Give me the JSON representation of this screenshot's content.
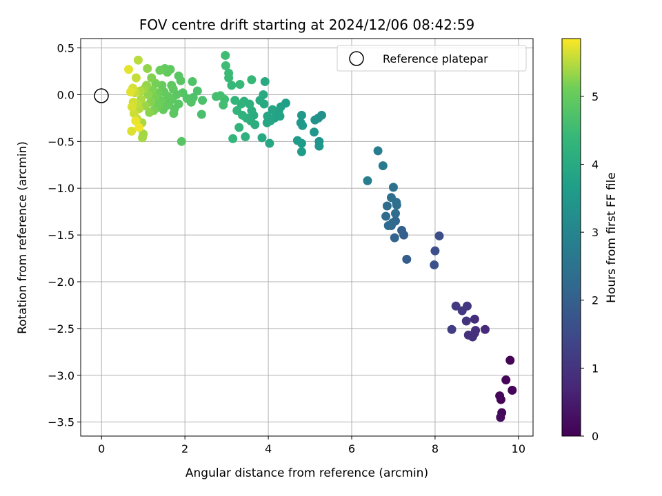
{
  "chart_data": {
    "type": "scatter",
    "title": "FOV centre drift starting at 2024/12/06 08:42:59",
    "xlabel": "Angular distance from reference (arcmin)",
    "ylabel": "Rotation from reference (arcmin)",
    "xlim": [
      -0.5,
      10.35
    ],
    "ylim": [
      -3.65,
      0.6
    ],
    "xticks": [
      0,
      2,
      4,
      6,
      8,
      10
    ],
    "yticks": [
      0.5,
      0.0,
      -0.5,
      -1.0,
      -1.5,
      -2.0,
      -2.5,
      -3.0,
      -3.5
    ],
    "grid": true,
    "legend": {
      "position": "top-right",
      "entries": [
        "Reference platepar"
      ]
    },
    "reference_point": {
      "x": 0,
      "y": 0,
      "label": "Reference platepar"
    },
    "colorbar": {
      "label": "Hours from first FF file",
      "min": 0,
      "max": 5.85,
      "ticks": [
        0,
        1,
        2,
        3,
        4,
        5
      ],
      "colormap": "viridis"
    },
    "series": [
      {
        "points": [
          {
            "x": 9.8,
            "y": -2.84,
            "c": 0.05
          },
          {
            "x": 9.85,
            "y": -3.16,
            "c": 0.08
          },
          {
            "x": 9.7,
            "y": -3.05,
            "c": 0.1
          },
          {
            "x": 9.58,
            "y": -3.26,
            "c": 0.03
          },
          {
            "x": 9.55,
            "y": -3.22,
            "c": 0.12
          },
          {
            "x": 9.6,
            "y": -3.4,
            "c": 0.15
          },
          {
            "x": 9.57,
            "y": -3.45,
            "c": 0.18
          },
          {
            "x": 9.2,
            "y": -2.51,
            "c": 0.8
          },
          {
            "x": 8.95,
            "y": -2.4,
            "c": 0.85
          },
          {
            "x": 8.97,
            "y": -2.52,
            "c": 0.9
          },
          {
            "x": 8.9,
            "y": -2.59,
            "c": 0.92
          },
          {
            "x": 8.8,
            "y": -2.57,
            "c": 0.95
          },
          {
            "x": 8.75,
            "y": -2.42,
            "c": 1.0
          },
          {
            "x": 8.77,
            "y": -2.26,
            "c": 1.05
          },
          {
            "x": 8.65,
            "y": -2.31,
            "c": 1.1
          },
          {
            "x": 8.5,
            "y": -2.26,
            "c": 1.12
          },
          {
            "x": 8.4,
            "y": -2.51,
            "c": 1.2
          },
          {
            "x": 8.95,
            "y": -2.55,
            "c": 0.88
          },
          {
            "x": 8.1,
            "y": -1.51,
            "c": 1.55
          },
          {
            "x": 8.0,
            "y": -1.67,
            "c": 1.6
          },
          {
            "x": 7.98,
            "y": -1.82,
            "c": 1.65
          },
          {
            "x": 7.32,
            "y": -1.76,
            "c": 1.95
          },
          {
            "x": 7.25,
            "y": -1.5,
            "c": 2.0
          },
          {
            "x": 7.2,
            "y": -1.45,
            "c": 2.05
          },
          {
            "x": 7.03,
            "y": -1.53,
            "c": 2.1
          },
          {
            "x": 7.05,
            "y": -1.35,
            "c": 2.15
          },
          {
            "x": 6.95,
            "y": -1.4,
            "c": 2.2
          },
          {
            "x": 6.88,
            "y": -1.4,
            "c": 2.25
          },
          {
            "x": 6.82,
            "y": -1.3,
            "c": 2.28
          },
          {
            "x": 6.85,
            "y": -1.19,
            "c": 2.3
          },
          {
            "x": 7.05,
            "y": -1.27,
            "c": 2.32
          },
          {
            "x": 7.07,
            "y": -1.15,
            "c": 2.35
          },
          {
            "x": 7.08,
            "y": -1.18,
            "c": 2.38
          },
          {
            "x": 6.95,
            "y": -1.1,
            "c": 2.4
          },
          {
            "x": 7.0,
            "y": -0.99,
            "c": 2.45
          },
          {
            "x": 6.98,
            "y": -1.37,
            "c": 2.26
          },
          {
            "x": 6.75,
            "y": -0.76,
            "c": 2.7
          },
          {
            "x": 6.63,
            "y": -0.6,
            "c": 2.8
          },
          {
            "x": 6.38,
            "y": -0.92,
            "c": 2.85
          },
          {
            "x": 5.28,
            "y": -0.22,
            "c": 3.3
          },
          {
            "x": 5.2,
            "y": -0.25,
            "c": 3.35
          },
          {
            "x": 5.12,
            "y": -0.27,
            "c": 3.38
          },
          {
            "x": 5.22,
            "y": -0.5,
            "c": 3.42
          },
          {
            "x": 5.22,
            "y": -0.55,
            "c": 3.45
          },
          {
            "x": 5.1,
            "y": -0.4,
            "c": 3.48
          },
          {
            "x": 4.8,
            "y": -0.22,
            "c": 3.5
          },
          {
            "x": 4.78,
            "y": -0.3,
            "c": 3.52
          },
          {
            "x": 4.82,
            "y": -0.33,
            "c": 3.55
          },
          {
            "x": 4.8,
            "y": -0.52,
            "c": 3.58
          },
          {
            "x": 4.7,
            "y": -0.49,
            "c": 3.6
          },
          {
            "x": 4.8,
            "y": -0.61,
            "c": 3.62
          },
          {
            "x": 4.42,
            "y": -0.09,
            "c": 3.7
          },
          {
            "x": 4.3,
            "y": -0.13,
            "c": 3.72
          },
          {
            "x": 4.25,
            "y": -0.18,
            "c": 3.75
          },
          {
            "x": 4.28,
            "y": -0.23,
            "c": 3.78
          },
          {
            "x": 4.15,
            "y": -0.25,
            "c": 3.8
          },
          {
            "x": 4.1,
            "y": -0.16,
            "c": 3.82
          },
          {
            "x": 4.05,
            "y": -0.28,
            "c": 3.85
          },
          {
            "x": 3.98,
            "y": -0.23,
            "c": 3.88
          },
          {
            "x": 3.97,
            "y": -0.3,
            "c": 3.9
          },
          {
            "x": 4.03,
            "y": -0.52,
            "c": 3.92
          },
          {
            "x": 3.85,
            "y": -0.46,
            "c": 3.95
          },
          {
            "x": 3.9,
            "y": -0.1,
            "c": 3.97
          },
          {
            "x": 3.92,
            "y": 0.14,
            "c": 3.98
          },
          {
            "x": 3.88,
            "y": 0.0,
            "c": 4.0
          },
          {
            "x": 3.8,
            "y": -0.06,
            "c": 4.02
          },
          {
            "x": 3.65,
            "y": -0.22,
            "c": 4.05
          },
          {
            "x": 3.68,
            "y": -0.32,
            "c": 4.08
          },
          {
            "x": 3.6,
            "y": -0.17,
            "c": 4.1
          },
          {
            "x": 3.58,
            "y": -0.28,
            "c": 4.12
          },
          {
            "x": 3.55,
            "y": -0.1,
            "c": 4.14
          },
          {
            "x": 3.48,
            "y": -0.25,
            "c": 4.15
          },
          {
            "x": 3.45,
            "y": -0.45,
            "c": 4.18
          },
          {
            "x": 3.42,
            "y": -0.07,
            "c": 4.2
          },
          {
            "x": 3.38,
            "y": -0.22,
            "c": 4.22
          },
          {
            "x": 3.35,
            "y": -0.1,
            "c": 4.25
          },
          {
            "x": 3.3,
            "y": -0.35,
            "c": 4.28
          },
          {
            "x": 3.25,
            "y": -0.17,
            "c": 4.3
          },
          {
            "x": 3.2,
            "y": -0.06,
            "c": 4.32
          },
          {
            "x": 3.15,
            "y": -0.47,
            "c": 4.35
          },
          {
            "x": 3.12,
            "y": 0.1,
            "c": 4.38
          },
          {
            "x": 3.6,
            "y": 0.16,
            "c": 4.4
          },
          {
            "x": 3.32,
            "y": 0.11,
            "c": 4.42
          },
          {
            "x": 3.05,
            "y": 0.18,
            "c": 4.45
          },
          {
            "x": 3.05,
            "y": 0.23,
            "c": 4.47
          },
          {
            "x": 2.98,
            "y": 0.31,
            "c": 4.5
          },
          {
            "x": 2.97,
            "y": 0.42,
            "c": 4.52
          },
          {
            "x": 2.95,
            "y": -0.05,
            "c": 4.55
          },
          {
            "x": 2.92,
            "y": -0.11,
            "c": 4.57
          },
          {
            "x": 2.85,
            "y": -0.01,
            "c": 4.6
          },
          {
            "x": 2.75,
            "y": -0.02,
            "c": 4.62
          },
          {
            "x": 2.4,
            "y": -0.21,
            "c": 4.65
          },
          {
            "x": 2.42,
            "y": -0.06,
            "c": 4.68
          },
          {
            "x": 2.3,
            "y": 0.04,
            "c": 4.7
          },
          {
            "x": 2.2,
            "y": -0.03,
            "c": 4.72
          },
          {
            "x": 2.18,
            "y": 0.14,
            "c": 4.74
          },
          {
            "x": 2.15,
            "y": -0.08,
            "c": 4.76
          },
          {
            "x": 2.05,
            "y": -0.04,
            "c": 4.78
          },
          {
            "x": 1.95,
            "y": 0.02,
            "c": 4.8
          },
          {
            "x": 1.92,
            "y": -0.5,
            "c": 4.82
          },
          {
            "x": 1.9,
            "y": 0.15,
            "c": 4.84
          },
          {
            "x": 1.85,
            "y": 0.2,
            "c": 4.85
          },
          {
            "x": 1.85,
            "y": -0.1,
            "c": 4.86
          },
          {
            "x": 1.8,
            "y": 0.0,
            "c": 4.87
          },
          {
            "x": 1.75,
            "y": -0.15,
            "c": 4.88
          },
          {
            "x": 1.73,
            "y": -0.2,
            "c": 4.89
          },
          {
            "x": 1.72,
            "y": 0.06,
            "c": 4.9
          },
          {
            "x": 1.7,
            "y": -0.05,
            "c": 4.91
          },
          {
            "x": 1.68,
            "y": 0.1,
            "c": 4.92
          },
          {
            "x": 1.65,
            "y": 0.27,
            "c": 4.93
          },
          {
            "x": 1.62,
            "y": -0.08,
            "c": 4.94
          },
          {
            "x": 1.6,
            "y": -0.02,
            "c": 4.95
          },
          {
            "x": 1.58,
            "y": 0.24,
            "c": 4.96
          },
          {
            "x": 1.55,
            "y": -0.12,
            "c": 4.97
          },
          {
            "x": 1.52,
            "y": 0.28,
            "c": 4.98
          },
          {
            "x": 1.5,
            "y": 0.03,
            "c": 4.99
          },
          {
            "x": 1.48,
            "y": -0.16,
            "c": 5.0
          },
          {
            "x": 1.45,
            "y": 0.1,
            "c": 5.02
          },
          {
            "x": 1.42,
            "y": -0.06,
            "c": 5.04
          },
          {
            "x": 1.4,
            "y": 0.26,
            "c": 5.06
          },
          {
            "x": 1.38,
            "y": -0.1,
            "c": 5.08
          },
          {
            "x": 1.35,
            "y": 0.02,
            "c": 5.1
          },
          {
            "x": 1.32,
            "y": -0.14,
            "c": 5.12
          },
          {
            "x": 1.3,
            "y": 0.12,
            "c": 5.14
          },
          {
            "x": 1.28,
            "y": -0.03,
            "c": 5.16
          },
          {
            "x": 1.25,
            "y": -0.17,
            "c": 5.18
          },
          {
            "x": 1.22,
            "y": 0.05,
            "c": 5.2
          },
          {
            "x": 1.2,
            "y": 0.18,
            "c": 5.22
          },
          {
            "x": 1.18,
            "y": -0.08,
            "c": 5.24
          },
          {
            "x": 1.15,
            "y": -0.19,
            "c": 5.26
          },
          {
            "x": 1.12,
            "y": 0.0,
            "c": 5.28
          },
          {
            "x": 1.1,
            "y": 0.28,
            "c": 5.3
          },
          {
            "x": 1.08,
            "y": 0.1,
            "c": 5.32
          },
          {
            "x": 1.05,
            "y": -0.12,
            "c": 5.34
          },
          {
            "x": 1.02,
            "y": 0.06,
            "c": 5.36
          },
          {
            "x": 1.0,
            "y": -0.42,
            "c": 5.38
          },
          {
            "x": 0.98,
            "y": -0.46,
            "c": 5.4
          },
          {
            "x": 0.97,
            "y": -0.3,
            "c": 5.42
          },
          {
            "x": 0.95,
            "y": -0.05,
            "c": 5.44
          },
          {
            "x": 0.93,
            "y": 0.04,
            "c": 5.46
          },
          {
            "x": 0.9,
            "y": -0.15,
            "c": 5.48
          },
          {
            "x": 0.88,
            "y": 0.37,
            "c": 5.5
          },
          {
            "x": 0.87,
            "y": -0.1,
            "c": 5.52
          },
          {
            "x": 0.85,
            "y": -0.26,
            "c": 5.54
          },
          {
            "x": 0.83,
            "y": 0.18,
            "c": 5.56
          },
          {
            "x": 0.8,
            "y": 0.02,
            "c": 5.58
          },
          {
            "x": 0.78,
            "y": -0.2,
            "c": 5.6
          },
          {
            "x": 0.76,
            "y": -0.08,
            "c": 5.62
          },
          {
            "x": 0.75,
            "y": 0.07,
            "c": 5.64
          },
          {
            "x": 0.73,
            "y": -0.13,
            "c": 5.66
          },
          {
            "x": 0.72,
            "y": -0.39,
            "c": 5.68
          },
          {
            "x": 0.7,
            "y": 0.03,
            "c": 5.7
          },
          {
            "x": 0.65,
            "y": 0.27,
            "c": 5.72
          },
          {
            "x": 0.82,
            "y": -0.28,
            "c": 5.75
          },
          {
            "x": 0.9,
            "y": -0.35,
            "c": 5.78
          }
        ]
      }
    ]
  }
}
